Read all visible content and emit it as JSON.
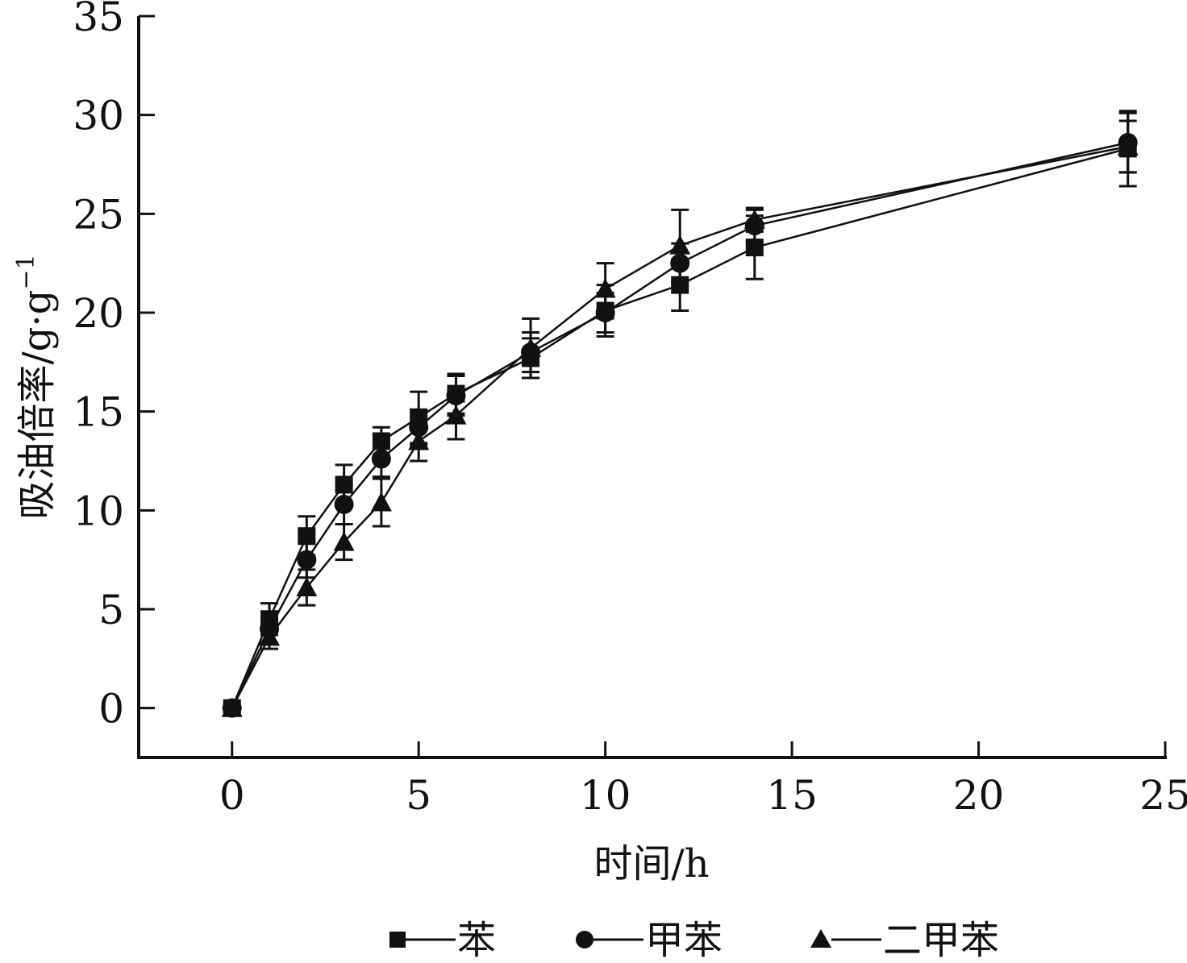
{
  "chart_data": {
    "type": "line",
    "title": "",
    "xlabel": "时间/h",
    "ylabel": "吸油倍率/g·g",
    "ylabel_superscript": "−1",
    "xlim": [
      -2.5,
      25
    ],
    "ylim": [
      -2.5,
      35
    ],
    "xticks": [
      0,
      5,
      10,
      15,
      20,
      25
    ],
    "yticks": [
      0,
      5,
      10,
      15,
      20,
      25,
      30,
      35
    ],
    "grid": false,
    "legend_position": "bottom",
    "x": [
      0,
      1,
      2,
      3,
      4,
      5,
      6,
      8,
      10,
      12,
      14,
      24
    ],
    "series": [
      {
        "name": "苯",
        "marker": "square",
        "values": [
          0,
          4.5,
          8.7,
          11.3,
          13.5,
          14.7,
          15.9,
          17.7,
          20.1,
          21.4,
          23.3,
          28.3
        ],
        "errors": [
          0,
          0.8,
          1.0,
          1.0,
          0.7,
          1.3,
          1.0,
          1.0,
          1.3,
          1.3,
          1.6,
          1.9
        ]
      },
      {
        "name": "甲苯",
        "marker": "circle",
        "values": [
          0,
          4.0,
          7.5,
          10.3,
          12.6,
          14.2,
          15.8,
          18.0,
          20.0,
          22.5,
          24.4,
          28.6
        ],
        "errors": [
          0,
          0.7,
          0.9,
          1.0,
          0.9,
          0.9,
          1.0,
          1.0,
          1.0,
          1.0,
          0.8,
          1.5
        ]
      },
      {
        "name": "二甲苯",
        "marker": "triangle",
        "values": [
          0,
          3.6,
          6.1,
          8.4,
          10.4,
          13.5,
          14.8,
          18.2,
          21.2,
          23.4,
          24.7,
          28.4
        ],
        "errors": [
          0,
          0.6,
          0.9,
          0.9,
          1.2,
          1.0,
          1.2,
          1.5,
          1.3,
          1.8,
          0.6,
          1.3
        ]
      }
    ],
    "legend_entries": [
      "苯",
      "甲苯",
      "二甲苯"
    ],
    "colors": {
      "line": "#111111",
      "background": "#ffffff"
    }
  }
}
